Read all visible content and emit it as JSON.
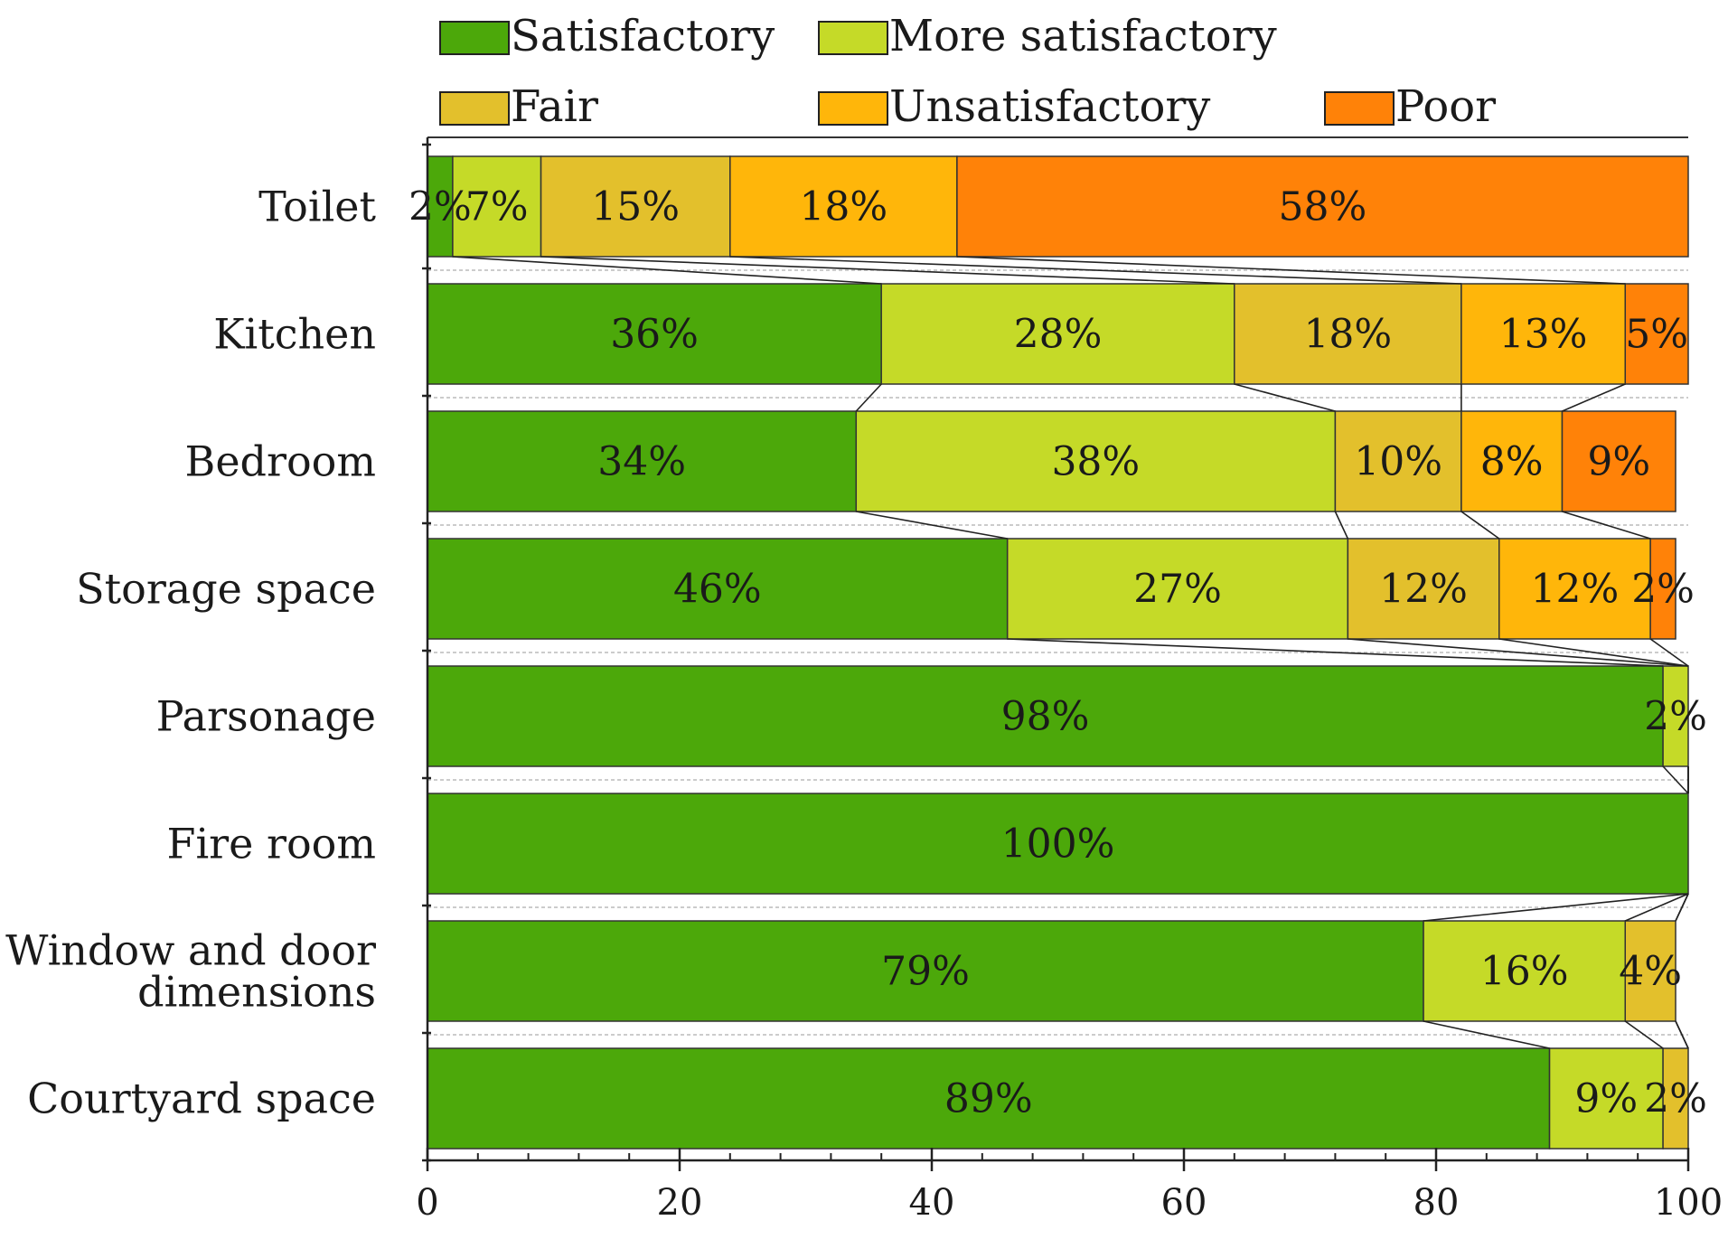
{
  "chart_data": {
    "type": "bar",
    "orientation": "horizontal",
    "stacked": true,
    "categories": [
      "Toilet",
      "Kitchen",
      "Bedroom",
      "Storage space",
      "Parsonage",
      "Fire room",
      "Window and door dimensions",
      "Courtyard space"
    ],
    "category_lines": [
      [
        "Toilet"
      ],
      [
        "Kitchen"
      ],
      [
        "Bedroom"
      ],
      [
        "Storage space"
      ],
      [
        "Parsonage"
      ],
      [
        "Fire room"
      ],
      [
        "Window and door",
        "dimensions"
      ],
      [
        "Courtyard space"
      ]
    ],
    "series": [
      {
        "name": "Satisfactory",
        "color": "#4ca80a",
        "values": [
          2,
          36,
          34,
          46,
          98,
          100,
          79,
          89
        ]
      },
      {
        "name": "More satisfactory",
        "color": "#c5da28",
        "values": [
          7,
          28,
          38,
          27,
          2,
          0,
          16,
          9
        ]
      },
      {
        "name": "Fair",
        "color": "#e3c02c",
        "values": [
          15,
          18,
          10,
          12,
          0,
          0,
          4,
          2
        ]
      },
      {
        "name": "Unsatisfactory",
        "color": "#ffb60a",
        "values": [
          18,
          13,
          8,
          12,
          0,
          0,
          0,
          0
        ]
      },
      {
        "name": "Poor",
        "color": "#ff8208",
        "values": [
          58,
          5,
          9,
          2,
          0,
          0,
          0,
          0
        ]
      }
    ],
    "value_labels": [
      [
        "2%",
        "7%",
        "15%",
        "18%",
        "58%"
      ],
      [
        "36%",
        "28%",
        "18%",
        "13%",
        "5%"
      ],
      [
        "34%",
        "38%",
        "10%",
        "8%",
        "9%"
      ],
      [
        "46%",
        "27%",
        "12%",
        "12%",
        "2%"
      ],
      [
        "98%",
        "2%",
        "",
        "",
        ""
      ],
      [
        "100%",
        "",
        "",
        "",
        ""
      ],
      [
        "79%",
        "16%",
        "4%",
        "",
        ""
      ],
      [
        "89%",
        "9%",
        "2%",
        "",
        ""
      ]
    ],
    "x_ticks": [
      0,
      20,
      40,
      60,
      80,
      100
    ],
    "xlim": [
      0,
      100
    ],
    "xlabel": "",
    "ylabel": "",
    "title": "",
    "legend_position": "top"
  }
}
